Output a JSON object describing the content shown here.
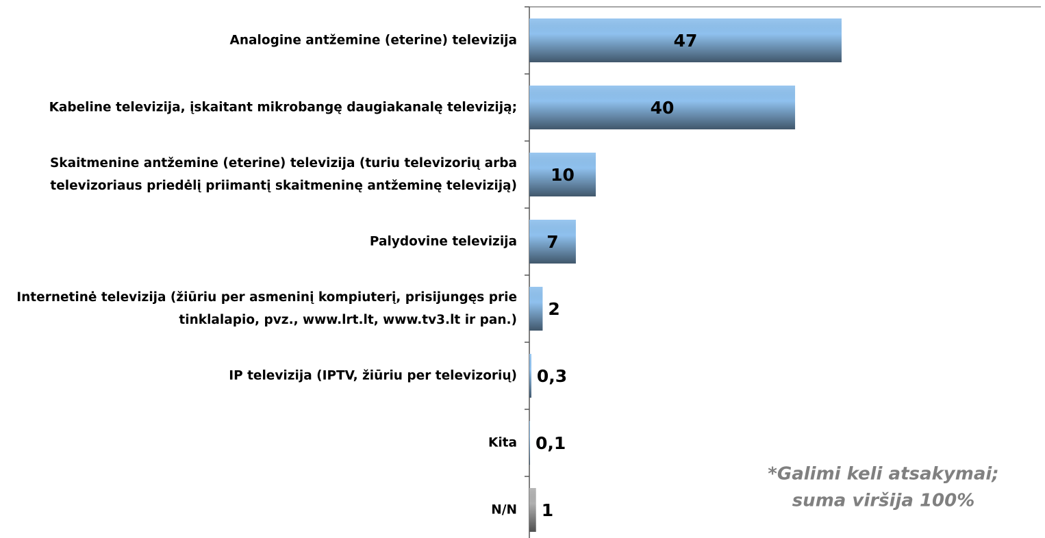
{
  "chart_data": {
    "type": "bar",
    "orientation": "horizontal",
    "categories": [
      "Analogine antžemine (eterine) televizija",
      "Kabeline televizija, įskaitant mikrobangę daugiakanalę televiziją;",
      "Skaitmenine antžemine (eterine) televizija (turiu televizorių arba televizoriaus priedėlį priimantį skaitmeninę antžeminę televiziją)",
      "Palydovine televizija",
      "Internetinė televizija (žiūriu per asmeninį kompiuterį, prisijungęs prie tinklalapio, pvz., www.lrt.lt, www.tv3.lt ir pan.)",
      "IP televizija (IPTV, žiūriu per televizorių)",
      "Kita",
      "N/N"
    ],
    "values": [
      47,
      40,
      10,
      7,
      2,
      0.3,
      0.1,
      1
    ],
    "value_labels": [
      "47",
      "40",
      "10",
      "7",
      "2",
      "0,3",
      "0,1",
      "1"
    ],
    "colors": [
      "#8fc1ee",
      "#8fc1ee",
      "#8fc1ee",
      "#8fc1ee",
      "#8fc1ee",
      "#8fc1ee",
      "#8fc1ee",
      "#b0b0b0"
    ],
    "xlim": [
      0,
      77
    ],
    "annotation": [
      "*Galimi keli atsakymai;",
      "suma viršija 100%"
    ]
  }
}
